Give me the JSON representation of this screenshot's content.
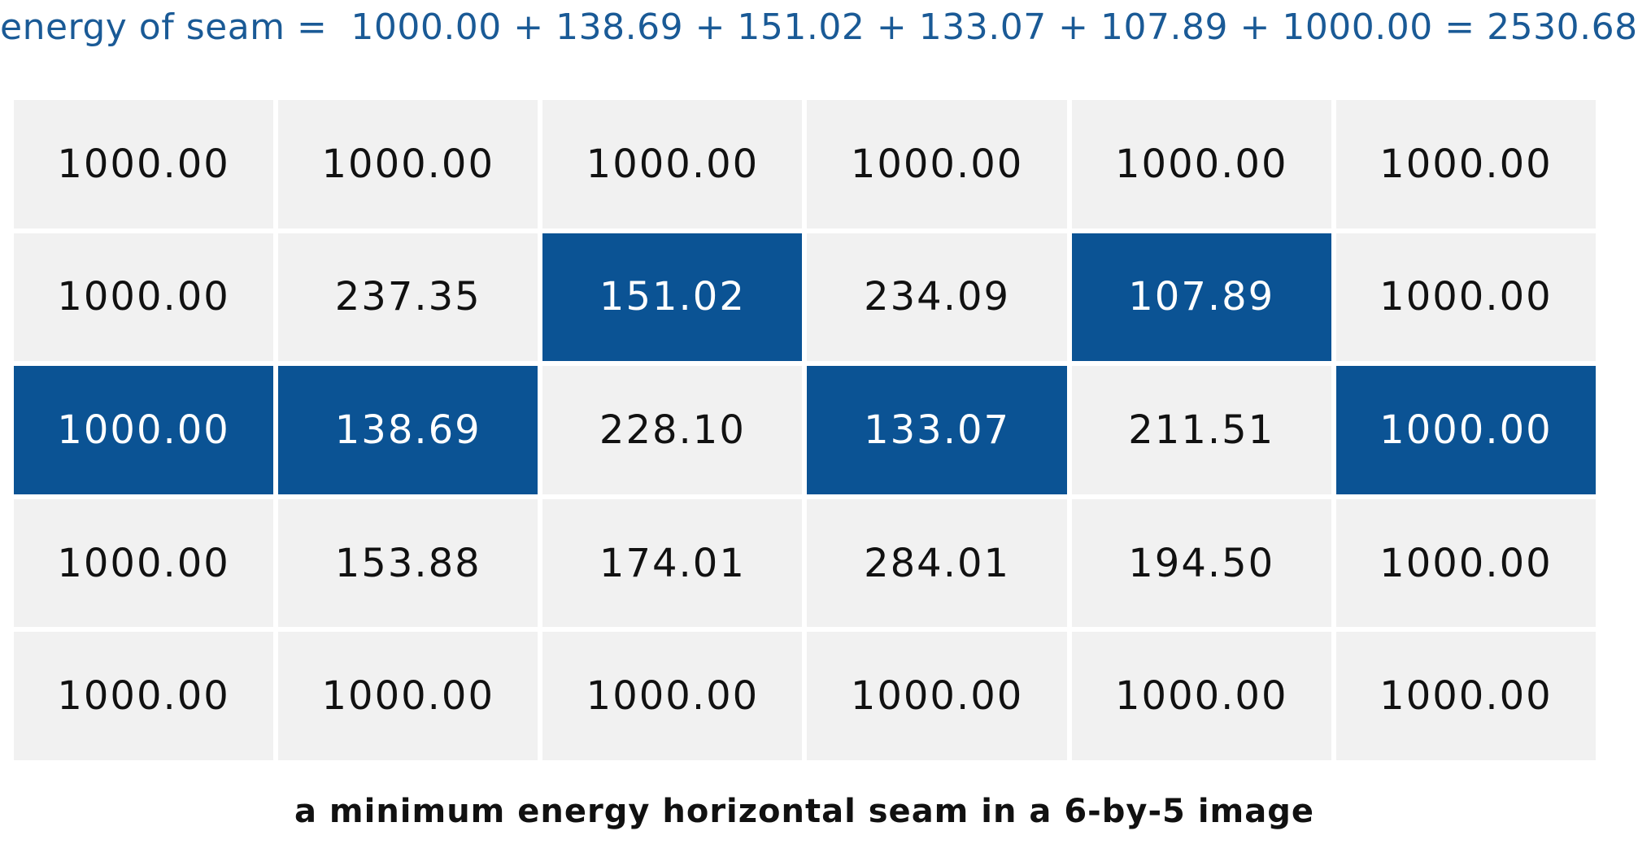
{
  "equation": "energy of seam =  1000.00 + 138.69 + 151.02 + 133.07 + 107.89 + 1000.00 = 2530.68",
  "caption": "a minimum energy horizontal seam in a 6-by-5 image",
  "colors": {
    "seam_fill": "#0b5394",
    "cell_fill": "#f1f1f1",
    "equation_text": "#1a5a96"
  },
  "grid": {
    "columns": 6,
    "rows": [
      [
        "1000.00",
        "1000.00",
        "1000.00",
        "1000.00",
        "1000.00",
        "1000.00"
      ],
      [
        "1000.00",
        "237.35",
        "151.02",
        "234.09",
        "107.89",
        "1000.00"
      ],
      [
        "1000.00",
        "138.69",
        "228.10",
        "133.07",
        "211.51",
        "1000.00"
      ],
      [
        "1000.00",
        "153.88",
        "174.01",
        "284.01",
        "194.50",
        "1000.00"
      ],
      [
        "1000.00",
        "1000.00",
        "1000.00",
        "1000.00",
        "1000.00",
        "1000.00"
      ]
    ],
    "seam_row_by_column": [
      2,
      2,
      1,
      2,
      1,
      2
    ]
  }
}
